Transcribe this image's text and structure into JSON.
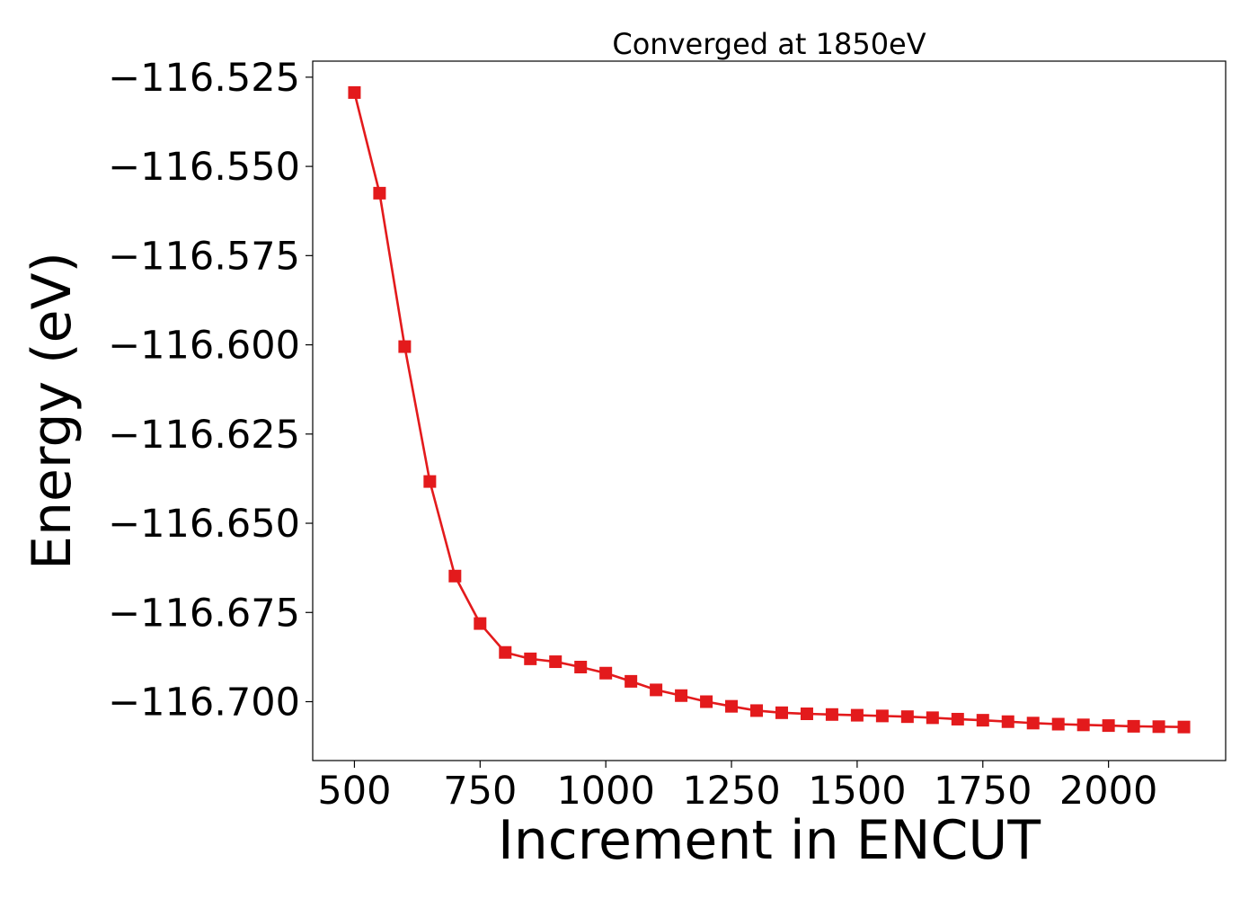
{
  "chart_data": {
    "type": "line",
    "title": "Converged at 1850eV",
    "xlabel": "Increment in ENCUT",
    "ylabel": "Energy (eV)",
    "xlim": [
      417,
      2233
    ],
    "ylim": [
      -116.7165,
      -116.5205
    ],
    "xticks": [
      500,
      750,
      1000,
      1250,
      1500,
      1750,
      2000
    ],
    "xtick_labels": [
      "500",
      "750",
      "1000",
      "1250",
      "1500",
      "1750",
      "2000"
    ],
    "yticks": [
      -116.525,
      -116.55,
      -116.575,
      -116.6,
      -116.625,
      -116.65,
      -116.675,
      -116.7
    ],
    "ytick_labels": [
      "−116.525",
      "−116.550",
      "−116.575",
      "−116.600",
      "−116.625",
      "−116.650",
      "−116.675",
      "−116.700"
    ],
    "grid": false,
    "series": [
      {
        "color": "#e31a1c",
        "marker": "square",
        "x": [
          500,
          550,
          600,
          650,
          700,
          750,
          800,
          850,
          900,
          950,
          1000,
          1050,
          1100,
          1150,
          1200,
          1250,
          1300,
          1350,
          1400,
          1450,
          1500,
          1550,
          1600,
          1650,
          1700,
          1750,
          1800,
          1850,
          1900,
          1950,
          2000,
          2050,
          2100,
          2150
        ],
        "y": [
          -116.5293,
          -116.5575,
          -116.6005,
          -116.6383,
          -116.6648,
          -116.6781,
          -116.6862,
          -116.688,
          -116.6888,
          -116.6903,
          -116.692,
          -116.6943,
          -116.6967,
          -116.6983,
          -116.7,
          -116.7013,
          -116.7025,
          -116.7031,
          -116.7034,
          -116.7036,
          -116.7038,
          -116.704,
          -116.7042,
          -116.7045,
          -116.7049,
          -116.7052,
          -116.7056,
          -116.706,
          -116.7063,
          -116.7065,
          -116.7067,
          -116.7069,
          -116.707,
          -116.7071
        ]
      }
    ]
  }
}
